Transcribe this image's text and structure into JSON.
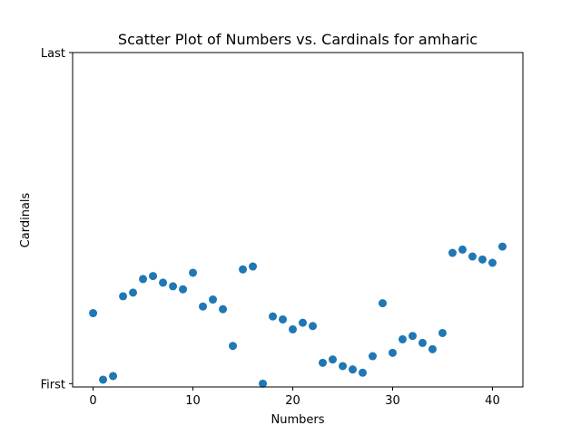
{
  "chart_data": {
    "type": "scatter",
    "title": "Scatter Plot of Numbers vs. Cardinals for amharic",
    "xlabel": "Numbers",
    "ylabel": "Cardinals",
    "xlim": [
      -2.05,
      43.05
    ],
    "ylim": [
      -0.01,
      1.0
    ],
    "xticks": [
      0,
      10,
      20,
      30,
      40
    ],
    "xtick_labels": [
      "0",
      "10",
      "20",
      "30",
      "40"
    ],
    "yticks": [
      0,
      1
    ],
    "ytick_labels": [
      "First",
      "Last"
    ],
    "grid": false,
    "marker_color": "#1f77b4",
    "x": [
      0,
      1,
      2,
      3,
      4,
      5,
      6,
      7,
      8,
      9,
      10,
      11,
      12,
      13,
      14,
      15,
      16,
      17,
      18,
      19,
      20,
      21,
      22,
      23,
      24,
      25,
      26,
      27,
      28,
      29,
      30,
      31,
      32,
      33,
      34,
      35,
      36,
      37,
      38,
      39,
      40,
      41
    ],
    "y": [
      0.213,
      0.012,
      0.023,
      0.264,
      0.275,
      0.316,
      0.325,
      0.305,
      0.294,
      0.285,
      0.335,
      0.233,
      0.254,
      0.225,
      0.114,
      0.345,
      0.354,
      0.0,
      0.203,
      0.194,
      0.164,
      0.184,
      0.174,
      0.063,
      0.073,
      0.053,
      0.043,
      0.033,
      0.083,
      0.243,
      0.093,
      0.134,
      0.144,
      0.123,
      0.104,
      0.153,
      0.395,
      0.405,
      0.384,
      0.375,
      0.365,
      0.414
    ]
  }
}
